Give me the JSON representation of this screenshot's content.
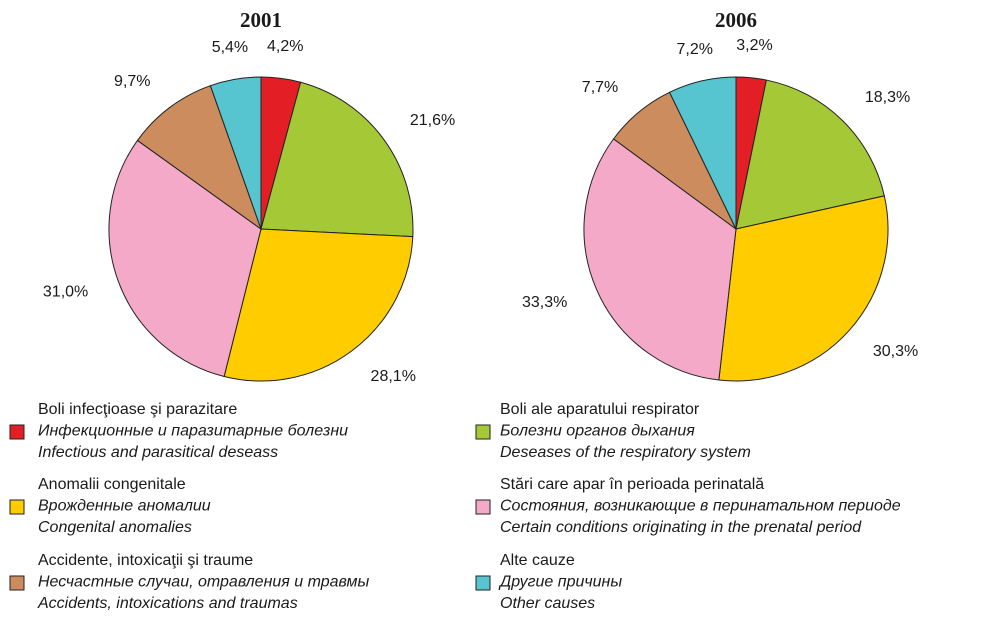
{
  "chart_data": [
    {
      "type": "pie",
      "title": "2001",
      "values": [
        4.2,
        21.6,
        28.1,
        31.0,
        9.7,
        5.4
      ],
      "value_labels": [
        "4,2%",
        "21,6%",
        "28,1%",
        "31,0%",
        "9,7%",
        "5,4%"
      ]
    },
    {
      "type": "pie",
      "title": "2006",
      "values": [
        3.2,
        18.3,
        30.3,
        33.3,
        7.7,
        7.2
      ],
      "value_labels": [
        "3,2%",
        "18,3%",
        "30,3%",
        "33,3%",
        "7,7%",
        "7,2%"
      ]
    }
  ],
  "legend": [
    {
      "color": "#e31e24",
      "label": [
        "Boli infecţioase şi parazitare",
        "Инфекционные и паразитарные болезни",
        "Infectious and parasitical deseass"
      ]
    },
    {
      "color": "#a5c936",
      "label": [
        "Boli ale aparatului respirator",
        "Болезни органов дыхания",
        "Deseases of the respiratory system"
      ]
    },
    {
      "color": "#ffcc00",
      "label": [
        "Anomalii congenitale",
        "Врожденные аномалии",
        "Congenital anomalies"
      ]
    },
    {
      "color": "#f4a9c9",
      "label": [
        "Stări care apar în perioada perinatală",
        "Состояния, возникающие в перинатальном периоде",
        "Certain conditions originating in the prenatal period"
      ]
    },
    {
      "color": "#cc8c5e",
      "label": [
        "Accidente, intoxicaţii şi traume",
        "Несчастные случаи, отравления и травмы",
        "Accidents, intoxications and traumas"
      ]
    },
    {
      "color": "#56c5d0",
      "label": [
        "Alte cauze",
        "Другие причины",
        "Other causes"
      ]
    }
  ]
}
